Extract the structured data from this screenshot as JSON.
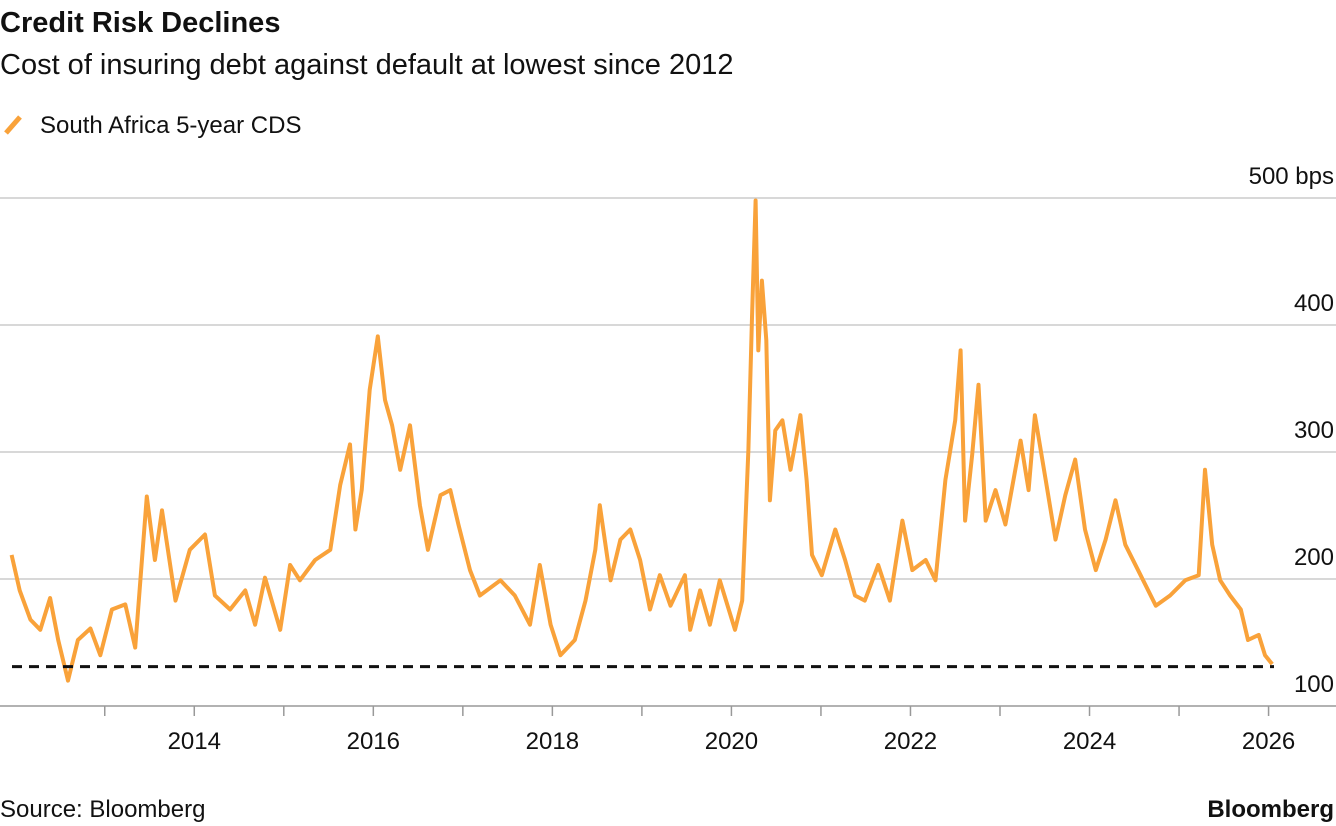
{
  "chart_data": {
    "type": "line",
    "title": "Credit Risk Declines",
    "subtitle": "Cost of insuring debt against default at lowest since 2012",
    "source": "Source: Bloomberg",
    "brand": "Bloomberg",
    "x": [
      2011.96,
      2012.05,
      2012.17,
      2012.28,
      2012.39,
      2012.48,
      2012.59,
      2012.7,
      2012.84,
      2012.95,
      2013.08,
      2013.23,
      2013.34,
      2013.47,
      2013.56,
      2013.64,
      2013.79,
      2013.95,
      2014.12,
      2014.23,
      2014.4,
      2014.57,
      2014.68,
      2014.79,
      2014.96,
      2015.07,
      2015.18,
      2015.35,
      2015.52,
      2015.63,
      2015.74,
      2015.8,
      2015.87,
      2015.96,
      2016.05,
      2016.13,
      2016.21,
      2016.3,
      2016.41,
      2016.52,
      2016.61,
      2016.75,
      2016.86,
      2016.95,
      2017.08,
      2017.19,
      2017.42,
      2017.58,
      2017.75,
      2017.86,
      2017.98,
      2018.09,
      2018.25,
      2018.37,
      2018.48,
      2018.53,
      2018.65,
      2018.76,
      2018.87,
      2018.98,
      2019.09,
      2019.2,
      2019.32,
      2019.48,
      2019.54,
      2019.65,
      2019.76,
      2019.87,
      2020.04,
      2020.12,
      2020.19,
      2020.23,
      2020.27,
      2020.3,
      2020.34,
      2020.39,
      2020.43,
      2020.49,
      2020.57,
      2020.66,
      2020.77,
      2020.84,
      2020.9,
      2021.01,
      2021.16,
      2021.27,
      2021.38,
      2021.49,
      2021.64,
      2021.77,
      2021.91,
      2022.02,
      2022.17,
      2022.28,
      2022.39,
      2022.5,
      2022.56,
      2022.61,
      2022.69,
      2022.76,
      2022.84,
      2022.95,
      2023.06,
      2023.23,
      2023.32,
      2023.39,
      2023.51,
      2023.62,
      2023.73,
      2023.84,
      2023.95,
      2024.07,
      2024.18,
      2024.29,
      2024.4,
      2024.57,
      2024.74,
      2024.9,
      2025.07,
      2025.22,
      2025.29,
      2025.37,
      2025.46,
      2025.57,
      2025.69,
      2025.77,
      2025.89,
      2025.96,
      2026.04
    ],
    "series": [
      {
        "name": "South Africa 5-year CDS",
        "color": "#f9a23a",
        "values": [
          219,
          191,
          168,
          160,
          185,
          152,
          120,
          152,
          161,
          140,
          176,
          180,
          146,
          265,
          215,
          254,
          183,
          223,
          235,
          187,
          176,
          191,
          164,
          201,
          160,
          211,
          199,
          215,
          223,
          274,
          306,
          239,
          270,
          349,
          391,
          341,
          321,
          286,
          321,
          258,
          223,
          266,
          270,
          243,
          207,
          187,
          199,
          187,
          164,
          211,
          164,
          140,
          152,
          183,
          223,
          258,
          199,
          231,
          239,
          215,
          176,
          203,
          179,
          203,
          160,
          191,
          164,
          199,
          160,
          183,
          302,
          406,
          498,
          380,
          435,
          388,
          262,
          317,
          325,
          286,
          329,
          278,
          219,
          203,
          239,
          215,
          187,
          183,
          211,
          183,
          246,
          207,
          215,
          199,
          278,
          325,
          380,
          246,
          298,
          353,
          246,
          270,
          243,
          309,
          270,
          329,
          278,
          231,
          266,
          294,
          239,
          207,
          231,
          262,
          227,
          203,
          179,
          187,
          199,
          203,
          286,
          227,
          199,
          187,
          176,
          152,
          156,
          140,
          133
        ]
      }
    ],
    "xlim": [
      2011.83,
      2026.15
    ],
    "xticks": [
      2014,
      2016,
      2018,
      2020,
      2022,
      2024,
      2026
    ],
    "xminorticks": [
      2013,
      2015,
      2017,
      2019,
      2021,
      2023,
      2025
    ],
    "ylim": [
      100,
      500
    ],
    "yticks": [
      100,
      200,
      300,
      400,
      {
        "value": 500,
        "label": "500 bps"
      }
    ],
    "reference_line": 131,
    "grid": true
  }
}
